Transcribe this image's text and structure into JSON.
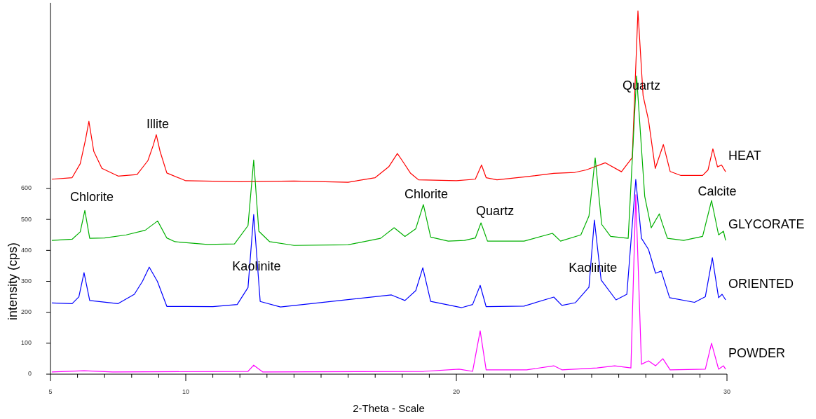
{
  "chart_data": {
    "type": "line",
    "xlabel": "2-Theta - Scale",
    "ylabel": "intensity (cps)",
    "xlim": [
      5,
      30
    ],
    "ylim": [
      0,
      1200
    ],
    "xticks": [
      5,
      {
        "value": 6,
        "label": null
      },
      {
        "value": 7,
        "label": null
      },
      {
        "value": 8,
        "label": null
      },
      {
        "value": 9,
        "label": null
      },
      10,
      {
        "value": 11,
        "label": null
      },
      {
        "value": 12,
        "label": null
      },
      {
        "value": 13,
        "label": null
      },
      {
        "value": 14,
        "label": null
      },
      {
        "value": 15,
        "label": null
      },
      {
        "value": 16,
        "label": null
      },
      {
        "value": 17,
        "label": null
      },
      {
        "value": 18,
        "label": null
      },
      {
        "value": 19,
        "label": null
      },
      20,
      {
        "value": 21,
        "label": null
      },
      {
        "value": 22,
        "label": null
      },
      {
        "value": 23,
        "label": null
      },
      {
        "value": 24,
        "label": null
      },
      {
        "value": 25,
        "label": null
      },
      {
        "value": 26,
        "label": null
      },
      {
        "value": 27,
        "label": null
      },
      {
        "value": 28,
        "label": null
      },
      {
        "value": 29,
        "label": null
      },
      30
    ],
    "yticks": [
      0,
      100,
      200,
      300,
      400,
      500,
      600
    ],
    "grid": false,
    "marker": "none",
    "line_style": "solid",
    "series": [
      {
        "name": "HEAT",
        "color": "#ff0000",
        "x": [
          5.05,
          5.8,
          6.1,
          6.3,
          6.42,
          6.6,
          6.9,
          7.5,
          8.2,
          8.6,
          8.8,
          8.91,
          9.05,
          9.3,
          10,
          12,
          14,
          16,
          17,
          17.5,
          17.82,
          18,
          18.3,
          18.6,
          20,
          20.7,
          20.93,
          21.1,
          21.5,
          22.6,
          23.6,
          24.38,
          24.8,
          25.5,
          26.1,
          26.5,
          26.71,
          26.9,
          27.1,
          27.35,
          27.65,
          27.9,
          28.3,
          29.1,
          29.3,
          29.48,
          29.65,
          29.8,
          29.95
        ],
        "values": [
          630,
          635,
          680,
          760,
          817,
          720,
          665,
          640,
          645,
          690,
          740,
          774,
          720,
          650,
          625,
          622,
          624,
          620,
          635,
          670,
          713,
          690,
          650,
          628,
          625,
          630,
          676,
          635,
          628,
          638,
          649,
          652,
          660,
          683,
          654,
          700,
          1174,
          900,
          821,
          665,
          742,
          655,
          642,
          642,
          660,
          728,
          670,
          676,
          654
        ]
      },
      {
        "name": "GLYCORATE",
        "color": "#00b000",
        "x": [
          5.05,
          5.8,
          6.1,
          6.27,
          6.45,
          7,
          7.8,
          8.5,
          8.96,
          9.3,
          9.6,
          10.8,
          11.8,
          12.3,
          12.51,
          12.7,
          13.1,
          14,
          16,
          17.2,
          17.7,
          18.1,
          18.5,
          18.78,
          19.05,
          19.7,
          20.3,
          20.7,
          20.91,
          21.15,
          22.5,
          23.55,
          23.85,
          24.6,
          24.9,
          25.13,
          25.37,
          25.7,
          26.35,
          26.66,
          26.96,
          27.2,
          27.5,
          27.6,
          27.8,
          28.4,
          29.1,
          29.43,
          29.69,
          29.87,
          29.95
        ],
        "values": [
          432,
          436,
          460,
          529,
          439,
          440,
          450,
          465,
          495,
          440,
          428,
          419,
          421,
          480,
          692,
          462,
          428,
          416,
          418,
          439,
          473,
          445,
          470,
          548,
          443,
          430,
          432,
          440,
          489,
          430,
          430,
          455,
          430,
          450,
          511,
          699,
          484,
          445,
          439,
          964,
          575,
          473,
          518,
          490,
          439,
          432,
          445,
          561,
          450,
          462,
          432
        ]
      },
      {
        "name": "ORIENTED",
        "color": "#0000ff",
        "x": [
          5.05,
          5.8,
          6.05,
          6.24,
          6.45,
          7.5,
          8.1,
          8.4,
          8.65,
          8.95,
          9.3,
          10,
          11,
          11.9,
          12.3,
          12.51,
          12.75,
          13.5,
          17.6,
          18.1,
          18.5,
          18.76,
          19.05,
          20.2,
          20.6,
          20.88,
          21.1,
          22.5,
          23.6,
          23.9,
          24.4,
          24.9,
          25.1,
          25.35,
          25.9,
          26.3,
          26.63,
          26.84,
          27.1,
          27.36,
          27.57,
          27.88,
          28.8,
          29.2,
          29.46,
          29.69,
          29.82,
          29.95
        ],
        "values": [
          230,
          228,
          250,
          328,
          238,
          228,
          258,
          300,
          346,
          300,
          219,
          219,
          218,
          225,
          280,
          516,
          235,
          217,
          256,
          238,
          270,
          344,
          235,
          215,
          225,
          287,
          218,
          220,
          249,
          222,
          231,
          281,
          498,
          304,
          240,
          258,
          629,
          439,
          403,
          326,
          333,
          247,
          232,
          250,
          376,
          247,
          258,
          240
        ]
      },
      {
        "name": "POWDER",
        "color": "#ff00ff",
        "x": [
          5.05,
          6.24,
          7.3,
          12.3,
          12.51,
          12.85,
          18.8,
          20.1,
          20.6,
          20.88,
          21.1,
          22.6,
          23.6,
          23.9,
          25.2,
          25.85,
          26.45,
          26.63,
          26.84,
          27.1,
          27.36,
          27.63,
          27.9,
          29.2,
          29.43,
          29.69,
          29.87,
          29.95
        ],
        "values": [
          7,
          11,
          7,
          9,
          29,
          7,
          9,
          16,
          9,
          140,
          14,
          14,
          27,
          14,
          20,
          27,
          20,
          580,
          32,
          43,
          27,
          50,
          14,
          16,
          100,
          16,
          27,
          16
        ]
      }
    ],
    "annotations": [
      {
        "text": "Illite",
        "x": 8.91,
        "y": 774
      },
      {
        "text": "Chlorite",
        "x": 6.27,
        "y": 529
      },
      {
        "text": "Chlorite",
        "x": 18.78,
        "y": 548
      },
      {
        "text": "Quartz",
        "x": 20.91,
        "y": 489
      },
      {
        "text": "Kaolinite",
        "x": 12.51,
        "y": 346
      },
      {
        "text": "Kaolinite",
        "x": 25.1,
        "y": 342
      },
      {
        "text": "Quartz",
        "x": 26.71,
        "y": 930
      },
      {
        "text": "Calcite",
        "x": 29.43,
        "y": 561
      }
    ]
  }
}
